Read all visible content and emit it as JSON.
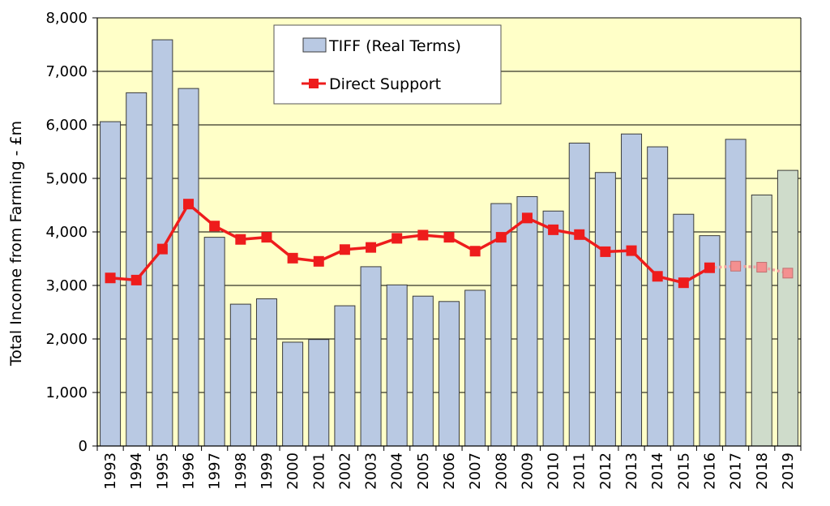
{
  "chart_data": {
    "type": "bar",
    "categories": [
      "1993",
      "1994",
      "1995",
      "1996",
      "1997",
      "1998",
      "1999",
      "2000",
      "2001",
      "2002",
      "2003",
      "2004",
      "2005",
      "2006",
      "2007",
      "2008",
      "2009",
      "2010",
      "2011",
      "2012",
      "2013",
      "2014",
      "2015",
      "2016",
      "2017",
      "2018",
      "2019"
    ],
    "series": [
      {
        "name": "TIFF (Real Terms)",
        "kind": "bar",
        "values": [
          6060,
          6600,
          7590,
          6680,
          3900,
          2650,
          2750,
          1940,
          1990,
          2620,
          3350,
          3010,
          2800,
          2700,
          2910,
          4530,
          4660,
          4390,
          5660,
          5110,
          5830,
          5590,
          4330,
          3930,
          5730,
          4690,
          5150
        ],
        "projected_from_index": 25
      },
      {
        "name": "Direct Support",
        "kind": "line",
        "values": [
          3140,
          3100,
          3680,
          4520,
          4110,
          3860,
          3900,
          3510,
          3450,
          3670,
          3710,
          3880,
          3940,
          3900,
          3640,
          3900,
          4260,
          4040,
          3950,
          3630,
          3650,
          3170,
          3050,
          3330,
          3360,
          3340,
          3230
        ],
        "projected_from_index": 24
      }
    ],
    "xlabel": "",
    "ylabel": "Total Income from Farming - £m",
    "ylim": [
      0,
      8000
    ],
    "y_ticks": [
      "0",
      "1,000",
      "2,000",
      "3,000",
      "4,000",
      "5,000",
      "6,000",
      "7,000",
      "8,000"
    ],
    "grid": true,
    "legend_position": "top-center",
    "colors": {
      "plot_background": "#ffffc8",
      "bar_fill": "#b9c9e3",
      "bar_fill_projected": "#cfdccb",
      "bar_stroke": "#3b3b3b",
      "line": "#ee1c1c",
      "line_projected": "#f4a0a0",
      "marker_projected": "#f49090",
      "gridline": "#000000"
    }
  }
}
